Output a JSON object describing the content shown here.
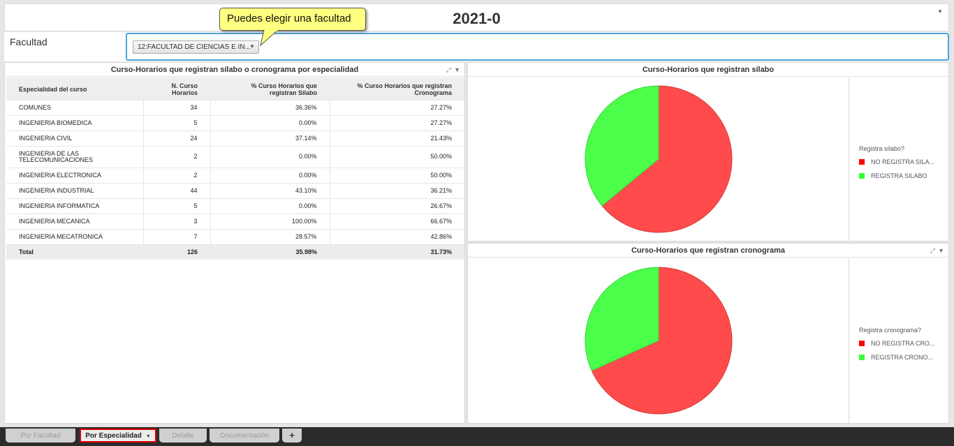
{
  "header": {
    "title": "2021-0"
  },
  "tooltip": {
    "text": "Puedes elegir una facultad"
  },
  "filter": {
    "label": "Facultad",
    "selected": "12:FACULTAD DE CIENCIAS E IN..."
  },
  "table_panel": {
    "title": "Curso-Horarios que registran sílabo o cronograma por especialidad",
    "columns": [
      "Especialidad del curso",
      "N. Curso Horarios",
      "% Curso Horarios que registran Silabo",
      "% Curso Horarios que registran Cronograma"
    ],
    "rows": [
      [
        "COMUNES",
        "34",
        "36.36%",
        "27.27%"
      ],
      [
        "INGENIERIA BIOMEDICA",
        "5",
        "0.00%",
        "27.27%"
      ],
      [
        "INGENIERIA CIVIL",
        "24",
        "37.14%",
        "21.43%"
      ],
      [
        "INGENIERIA DE LAS TELECOMUNICACIONES",
        "2",
        "0.00%",
        "50.00%"
      ],
      [
        "INGENIERIA ELECTRONICA",
        "2",
        "0.00%",
        "50.00%"
      ],
      [
        "INGENIERIA INDUSTRIAL",
        "44",
        "43.10%",
        "36.21%"
      ],
      [
        "INGENIERIA INFORMATICA",
        "5",
        "0.00%",
        "26.67%"
      ],
      [
        "INGENIERIA MECANICA",
        "3",
        "100.00%",
        "66.67%"
      ],
      [
        "INGENIERIA MECATRONICA",
        "7",
        "28.57%",
        "42.86%"
      ]
    ],
    "total": [
      "Total",
      "126",
      "35.98%",
      "31.73%"
    ]
  },
  "chart_data": [
    {
      "type": "pie",
      "title": "Curso-Horarios que registran sílabo",
      "legend_title": "Registra sílabo?",
      "legend_placement": "right",
      "labels": [
        "NO REGISTRA SILA...",
        "REGISTRA SILABO"
      ],
      "values": [
        64.02,
        35.98
      ],
      "colors": [
        "#ff4b4b",
        "#4bff4b"
      ],
      "legend_colors": [
        "#ff0000",
        "#33ff33"
      ]
    },
    {
      "type": "pie",
      "title": "Curso-Horarios que registran cronograma",
      "legend_title": "Registra cronograma?",
      "legend_placement": "right",
      "labels": [
        "NO REGISTRA CRO...",
        "REGISTRA CRONO..."
      ],
      "values": [
        68.27,
        31.73
      ],
      "colors": [
        "#ff4b4b",
        "#4bff4b"
      ],
      "legend_colors": [
        "#ff0000",
        "#33ff33"
      ]
    }
  ],
  "tabs": [
    {
      "label": "Por Facultad"
    },
    {
      "label": "Por Especialidad"
    },
    {
      "label": "Detalle"
    },
    {
      "label": "Documentación"
    },
    {
      "label": "+"
    }
  ]
}
